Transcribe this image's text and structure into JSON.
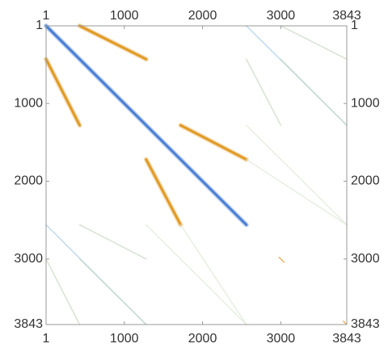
{
  "chart_data": {
    "type": "heatmap",
    "title": "",
    "xlabel": "",
    "ylabel": "",
    "xlim": [
      1,
      3843
    ],
    "ylim": [
      1,
      3843
    ],
    "y_inverted": true,
    "grid": false,
    "legend": "none",
    "x_ticks": [
      {
        "value": 1,
        "label": "1"
      },
      {
        "value": 1000,
        "label": "1000"
      },
      {
        "value": 2000,
        "label": "2000"
      },
      {
        "value": 3000,
        "label": "3000"
      },
      {
        "value": 3843,
        "label": "3843"
      }
    ],
    "y_ticks": [
      {
        "value": 1,
        "label": "1"
      },
      {
        "value": 1000,
        "label": "1000"
      },
      {
        "value": 2000,
        "label": "2000"
      },
      {
        "value": 3000,
        "label": "3000"
      },
      {
        "value": 3843,
        "label": "3843"
      }
    ],
    "colors": {
      "strong_negative": "#4a7fd4",
      "strong_positive": "#e09a25",
      "weak_negative": "#a9cde8",
      "weak_mixed": "#c8d9c4",
      "faint": "#dfe9d8",
      "frame": "#999999"
    },
    "bands": [
      {
        "from": [
          1,
          1
        ],
        "to": [
          2560,
          2560
        ],
        "color": "strong_negative",
        "intensity": "high"
      },
      {
        "from": [
          430,
          1
        ],
        "to": [
          1280,
          430
        ],
        "color": "strong_positive",
        "intensity": "high"
      },
      {
        "from": [
          1,
          430
        ],
        "to": [
          430,
          1280
        ],
        "color": "strong_positive",
        "intensity": "high"
      },
      {
        "from": [
          1720,
          1280
        ],
        "to": [
          2560,
          1720
        ],
        "color": "strong_positive",
        "intensity": "high"
      },
      {
        "from": [
          1280,
          1720
        ],
        "to": [
          1720,
          2560
        ],
        "color": "strong_positive",
        "intensity": "high"
      },
      {
        "from": [
          2560,
          1
        ],
        "to": [
          3843,
          1280
        ],
        "color": "weak_negative",
        "intensity": "low"
      },
      {
        "from": [
          3000,
          1
        ],
        "to": [
          3843,
          430
        ],
        "color": "weak_mixed",
        "intensity": "low"
      },
      {
        "from": [
          2560,
          430
        ],
        "to": [
          3000,
          1280
        ],
        "color": "weak_mixed",
        "intensity": "low"
      },
      {
        "from": [
          3000,
          430
        ],
        "to": [
          3843,
          1280
        ],
        "color": "weak_mixed",
        "intensity": "low"
      },
      {
        "from": [
          2560,
          1280
        ],
        "to": [
          3843,
          2560
        ],
        "color": "faint",
        "intensity": "low"
      },
      {
        "from": [
          2560,
          1720
        ],
        "to": [
          3843,
          2560
        ],
        "color": "faint",
        "intensity": "low"
      },
      {
        "from": [
          1,
          2560
        ],
        "to": [
          1280,
          3843
        ],
        "color": "weak_negative",
        "intensity": "low"
      },
      {
        "from": [
          1,
          3000
        ],
        "to": [
          430,
          3843
        ],
        "color": "weak_mixed",
        "intensity": "low"
      },
      {
        "from": [
          430,
          2560
        ],
        "to": [
          1280,
          3000
        ],
        "color": "weak_mixed",
        "intensity": "low"
      },
      {
        "from": [
          430,
          3000
        ],
        "to": [
          1280,
          3843
        ],
        "color": "weak_mixed",
        "intensity": "low"
      },
      {
        "from": [
          1280,
          2560
        ],
        "to": [
          2560,
          3843
        ],
        "color": "faint",
        "intensity": "low"
      },
      {
        "from": [
          1720,
          2560
        ],
        "to": [
          2560,
          3843
        ],
        "color": "faint",
        "intensity": "low"
      },
      {
        "from": [
          2980,
          2980
        ],
        "to": [
          3040,
          3040
        ],
        "color": "strong_positive",
        "intensity": "low"
      },
      {
        "from": [
          3800,
          3800
        ],
        "to": [
          3843,
          3843
        ],
        "color": "strong_positive",
        "intensity": "low"
      }
    ]
  }
}
